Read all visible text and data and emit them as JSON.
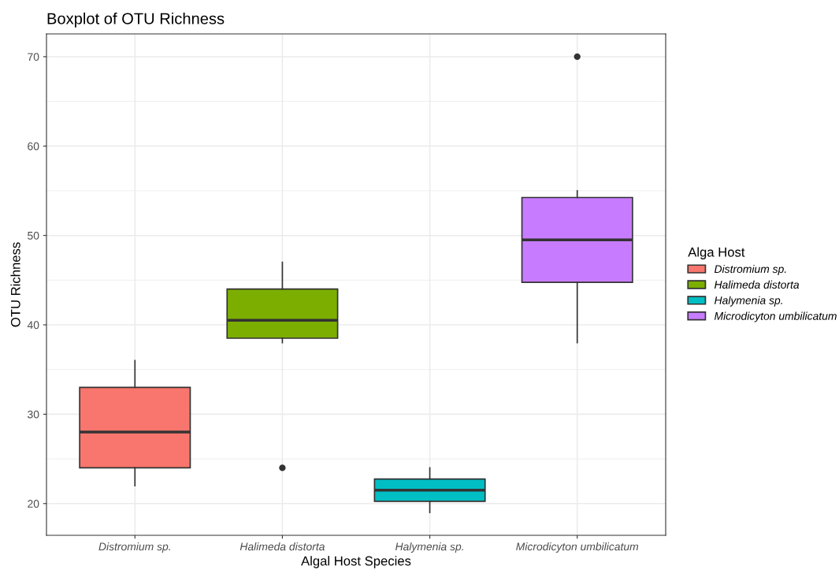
{
  "chart_data": {
    "type": "box",
    "title": "Boxplot of OTU Richness",
    "xlabel": "Algal Host Species",
    "ylabel": "OTU Richness",
    "legend_title": "Alga Host",
    "categories": [
      "Distromium sp.",
      "Halimeda distorta",
      "Halymenia sp.",
      "Microdicyton umbilicatum"
    ],
    "series": [
      {
        "name": "Distromium sp.",
        "color": "#f8766d",
        "boxes": [
          {
            "low": 22,
            "q1": 24,
            "median": 28,
            "q3": 33,
            "high": 36
          },
          null,
          null,
          null
        ]
      },
      {
        "name": "Halimeda distorta",
        "color": "#7cae00",
        "boxes": [
          null,
          {
            "low": 38,
            "q1": 38.5,
            "median": 40.5,
            "q3": 44,
            "high": 47,
            "outliers": [
              24
            ]
          },
          null,
          null
        ]
      },
      {
        "name": "Halymenia sp.",
        "color": "#00bfc4",
        "boxes": [
          null,
          null,
          {
            "low": 19,
            "q1": 20.25,
            "median": 21.5,
            "q3": 22.75,
            "high": 24
          },
          null
        ]
      },
      {
        "name": "Microdicyton umbilicatum",
        "color": "#c77cff",
        "boxes": [
          null,
          null,
          null,
          {
            "low": 38,
            "q1": 44.75,
            "median": 49.5,
            "q3": 54.25,
            "high": 55,
            "outliers": [
              70
            ]
          }
        ]
      }
    ],
    "ylim": [
      16.45,
      72.55
    ],
    "yticks": [
      20,
      30,
      40,
      50,
      60,
      70
    ],
    "grid": true,
    "legend": "right"
  }
}
